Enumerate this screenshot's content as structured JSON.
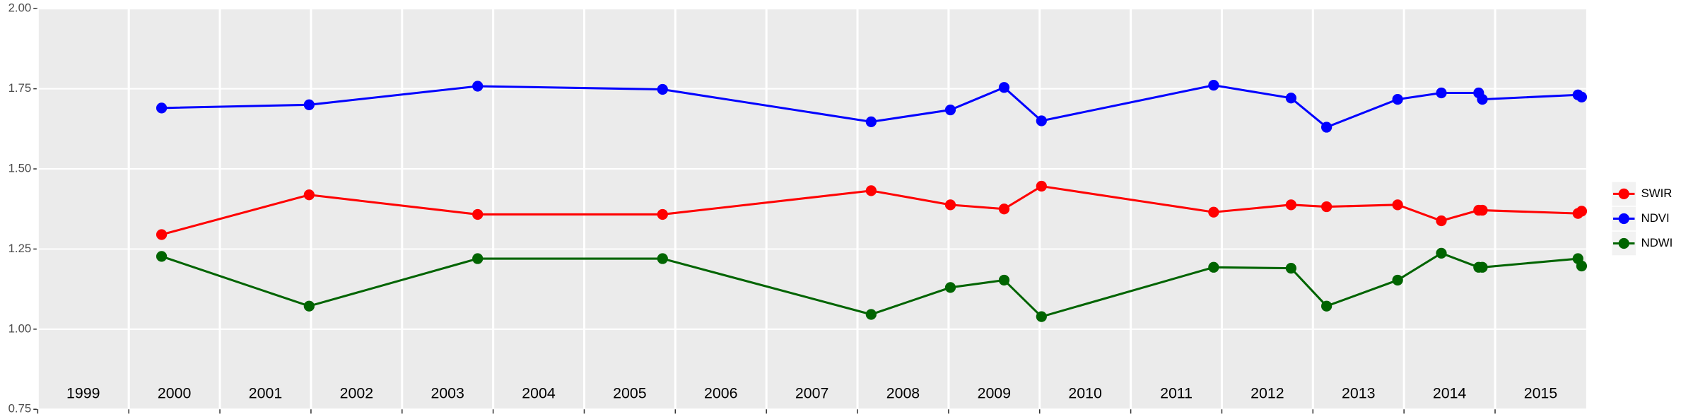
{
  "chart_data": {
    "type": "line",
    "x": [
      2000.36,
      2001.98,
      2003.83,
      2005.86,
      2008.15,
      2009.02,
      2009.61,
      2010.02,
      2011.91,
      2012.76,
      2013.15,
      2013.93,
      2014.41,
      2014.82,
      2014.86,
      2015.91,
      2015.95
    ],
    "series": [
      {
        "name": "SWIR",
        "color": "#ff0000",
        "values": [
          1.295,
          1.419,
          1.358,
          1.358,
          1.432,
          1.388,
          1.375,
          1.446,
          1.365,
          1.388,
          1.382,
          1.388,
          1.338,
          1.371,
          1.371,
          1.361,
          1.368
        ]
      },
      {
        "name": "NDVI",
        "color": "#0000ff",
        "values": [
          1.69,
          1.7,
          1.758,
          1.748,
          1.647,
          1.684,
          1.754,
          1.65,
          1.761,
          1.721,
          1.63,
          1.717,
          1.737,
          1.737,
          1.717,
          1.731,
          1.724
        ]
      },
      {
        "name": "NDWI",
        "color": "#006400",
        "values": [
          1.227,
          1.072,
          1.22,
          1.22,
          1.046,
          1.13,
          1.153,
          1.039,
          1.193,
          1.19,
          1.072,
          1.153,
          1.237,
          1.193,
          1.193,
          1.22,
          1.197
        ]
      }
    ],
    "xlim": [
      1999,
      2016
    ],
    "xticks": [
      1999,
      2000,
      2001,
      2002,
      2003,
      2004,
      2005,
      2006,
      2007,
      2008,
      2009,
      2010,
      2011,
      2012,
      2013,
      2014,
      2015
    ],
    "ylim": [
      0.75,
      2.0
    ],
    "yticks": [
      {
        "value": 0.75,
        "label": "0.75"
      },
      {
        "value": 1.0,
        "label": "1.00"
      },
      {
        "value": 1.25,
        "label": "1.25"
      },
      {
        "value": 1.5,
        "label": "1.50"
      },
      {
        "value": 1.75,
        "label": "1.75"
      },
      {
        "value": 2.0,
        "label": "2.00"
      }
    ],
    "grid": true,
    "legend": "right"
  }
}
